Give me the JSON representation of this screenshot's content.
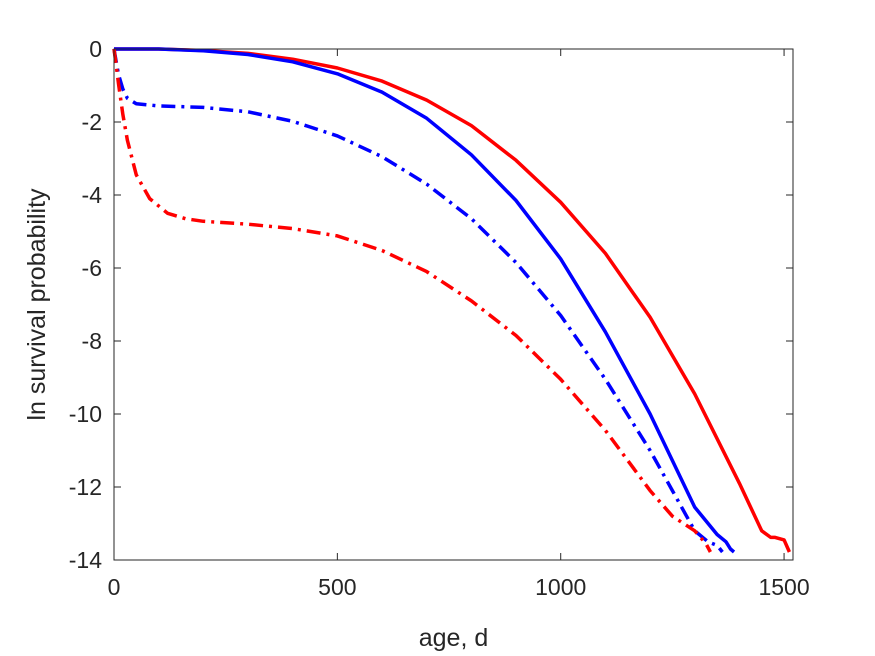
{
  "chart_data": {
    "type": "line",
    "title": "",
    "xlabel": "age, d",
    "ylabel": "ln survival probability",
    "xlim": [
      0,
      1520
    ],
    "ylim": [
      -14,
      0
    ],
    "xticks": [
      0,
      500,
      1000,
      1500
    ],
    "yticks": [
      0,
      -2,
      -4,
      -6,
      -8,
      -10,
      -12,
      -14
    ],
    "grid": false,
    "legend": "none",
    "series": [
      {
        "color": "#ff0000",
        "style": "solid",
        "x": [
          0,
          100,
          200,
          300,
          400,
          500,
          600,
          700,
          800,
          900,
          1000,
          1100,
          1200,
          1300,
          1400,
          1450,
          1470,
          1480,
          1500,
          1512
        ],
        "y": [
          0,
          0,
          -0.04,
          -0.12,
          -0.28,
          -0.52,
          -0.88,
          -1.4,
          -2.1,
          -3.05,
          -4.2,
          -5.6,
          -7.35,
          -9.45,
          -11.9,
          -13.2,
          -13.38,
          -13.38,
          -13.45,
          -13.78
        ]
      },
      {
        "color": "#0000ff",
        "style": "solid",
        "x": [
          0,
          100,
          200,
          300,
          400,
          500,
          600,
          700,
          800,
          900,
          1000,
          1100,
          1200,
          1300,
          1350,
          1370,
          1380,
          1388
        ],
        "y": [
          0,
          0,
          -0.05,
          -0.15,
          -0.35,
          -0.68,
          -1.18,
          -1.9,
          -2.9,
          -4.15,
          -5.75,
          -7.75,
          -10.0,
          -12.55,
          -13.3,
          -13.5,
          -13.7,
          -13.78
        ]
      },
      {
        "color": "#0000ff",
        "style": "dashdot",
        "x": [
          0,
          5,
          10,
          20,
          30,
          50,
          100,
          200,
          300,
          400,
          500,
          600,
          700,
          800,
          900,
          1000,
          1100,
          1200,
          1250,
          1300,
          1330,
          1340,
          1350,
          1362
        ],
        "y": [
          0,
          -0.35,
          -0.7,
          -1.1,
          -1.35,
          -1.5,
          -1.56,
          -1.6,
          -1.72,
          -1.98,
          -2.38,
          -2.95,
          -3.7,
          -4.65,
          -5.85,
          -7.3,
          -9.05,
          -11.0,
          -12.1,
          -13.2,
          -13.5,
          -13.55,
          -13.6,
          -13.78
        ]
      },
      {
        "color": "#ff0000",
        "style": "dashdot",
        "x": [
          0,
          5,
          10,
          20,
          30,
          50,
          80,
          120,
          160,
          200,
          300,
          400,
          500,
          600,
          700,
          800,
          900,
          1000,
          1100,
          1200,
          1250,
          1300,
          1325,
          1335
        ],
        "y": [
          0,
          -0.45,
          -0.95,
          -1.8,
          -2.5,
          -3.45,
          -4.1,
          -4.5,
          -4.65,
          -4.72,
          -4.8,
          -4.92,
          -5.12,
          -5.52,
          -6.1,
          -6.9,
          -7.85,
          -9.05,
          -10.45,
          -12.1,
          -12.8,
          -13.2,
          -13.55,
          -13.78
        ]
      }
    ]
  }
}
